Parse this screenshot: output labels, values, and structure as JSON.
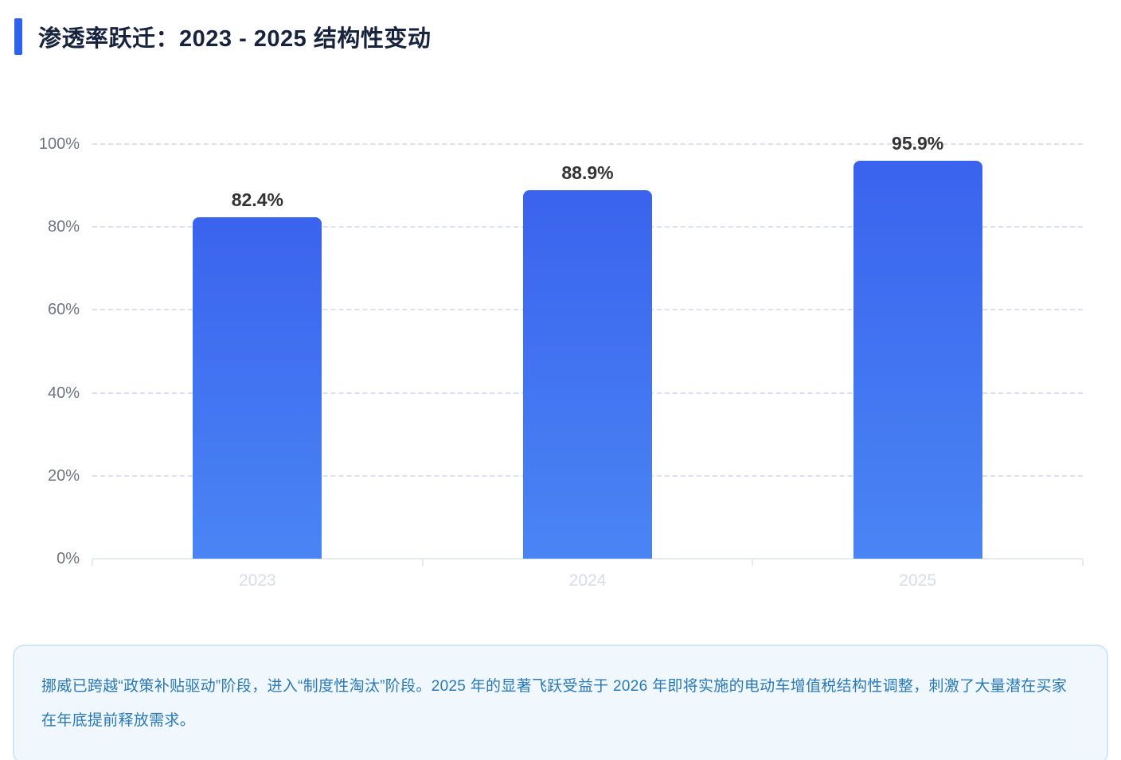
{
  "header": {
    "title": "渗透率跃迁：2023 - 2025 结构性变动"
  },
  "chart_data": {
    "type": "bar",
    "categories": [
      "2023",
      "2024",
      "2025"
    ],
    "values": [
      82.4,
      88.9,
      95.9
    ],
    "value_labels": [
      "82.4%",
      "88.9%",
      "95.9%"
    ],
    "y_ticks": [
      "0%",
      "20%",
      "40%",
      "60%",
      "80%",
      "100%"
    ],
    "ylim": [
      0,
      100
    ],
    "title": "",
    "xlabel": "",
    "ylabel": "",
    "grid": "horizontal-dashed",
    "legend": "none"
  },
  "note": {
    "text": "挪威已跨越“政策补贴驱动”阶段，进入“制度性淘汰”阶段。2025 年的显著飞跃受益于 2026 年即将实施的电动车增值税结构性调整，刺激了大量潜在买家在年底提前释放需求。"
  },
  "colors": {
    "accent": "#2f62ec",
    "bar_top": "#3a63ee",
    "bar_bottom": "#4a85f4",
    "value_label": "#333333",
    "note_bg": "#f0f7fd",
    "note_border": "#cde7f7",
    "note_text": "#2979b8"
  }
}
